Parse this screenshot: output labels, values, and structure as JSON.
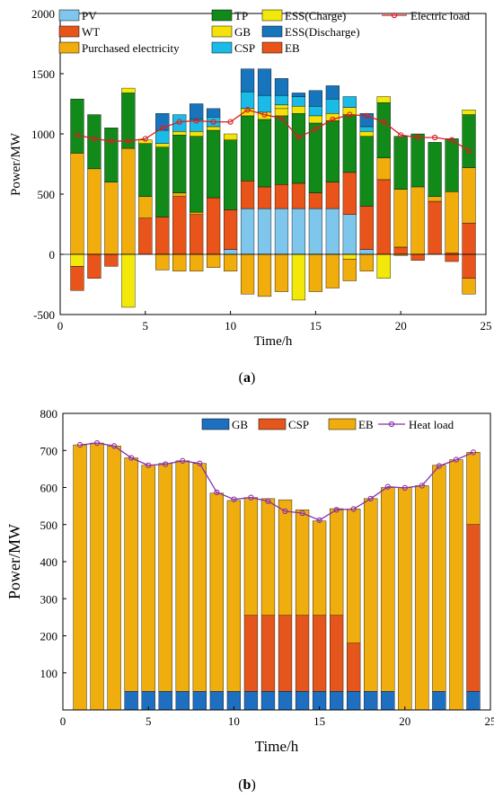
{
  "colors": {
    "PV": "#7ec6ec",
    "WT": "#e8541a",
    "PE": "#f0ad0b",
    "TP": "#118a1a",
    "GB": "#f5e20a",
    "CSP": "#1bbbe8",
    "ESSc": "#f2e80a",
    "ESSd": "#1775be",
    "EB": "#e8541a",
    "load": "#d81e1e",
    "GB_b": "#1e6fc0",
    "CSP_b": "#e4561b",
    "EB_b": "#f0ae0e",
    "heat": "#8a2fa8"
  },
  "chart_data": [
    {
      "type": "bar",
      "caption_letter": "a",
      "xlabel": "Time/h",
      "ylabel": "Power/MW",
      "xlim": [
        0,
        25
      ],
      "ylim": [
        -500,
        2000
      ],
      "xticks": [
        0,
        5,
        10,
        15,
        20,
        25
      ],
      "yticks": [
        -500,
        0,
        500,
        1000,
        1500,
        2000
      ],
      "grid": false,
      "legend_position": "top",
      "legend": [
        {
          "key": "PV",
          "label": "PV",
          "kind": "box"
        },
        {
          "key": "TP",
          "label": "TP",
          "kind": "box"
        },
        {
          "key": "ESSc",
          "label": "ESS(Charge)",
          "kind": "box"
        },
        {
          "key": "load",
          "label": "Electric load",
          "kind": "line"
        },
        {
          "key": "WT",
          "label": "WT",
          "kind": "box"
        },
        {
          "key": "GB",
          "label": "GB",
          "kind": "box"
        },
        {
          "key": "ESSd",
          "label": "ESS(Discharge)",
          "kind": "box"
        },
        {
          "key": "PE",
          "label": "Purchased electricity",
          "kind": "box"
        },
        {
          "key": "CSP",
          "label": "CSP",
          "kind": "box"
        },
        {
          "key": "EB",
          "label": "EB",
          "kind": "box"
        }
      ],
      "x": [
        1,
        2,
        3,
        4,
        5,
        6,
        7,
        8,
        9,
        10,
        11,
        12,
        13,
        14,
        15,
        16,
        17,
        18,
        19,
        20,
        21,
        22,
        23,
        24
      ],
      "positive_series": [
        {
          "key": "PV",
          "values": [
            0,
            0,
            0,
            0,
            0,
            0,
            0,
            0,
            0,
            40,
            380,
            380,
            380,
            380,
            380,
            380,
            330,
            40,
            0,
            0,
            0,
            0,
            0,
            0
          ]
        },
        {
          "key": "WT",
          "values": [
            0,
            0,
            0,
            0,
            300,
            310,
            480,
            330,
            470,
            330,
            230,
            180,
            200,
            210,
            130,
            220,
            350,
            360,
            620,
            60,
            0,
            440,
            10,
            260
          ]
        },
        {
          "key": "PE",
          "values": [
            840,
            710,
            600,
            880,
            180,
            0,
            30,
            20,
            0,
            0,
            0,
            0,
            0,
            0,
            0,
            0,
            0,
            0,
            180,
            480,
            560,
            40,
            510,
            460
          ]
        },
        {
          "key": "TP",
          "values": [
            450,
            450,
            450,
            460,
            440,
            580,
            480,
            630,
            560,
            580,
            540,
            560,
            570,
            580,
            580,
            510,
            480,
            580,
            460,
            440,
            440,
            450,
            440,
            440
          ]
        },
        {
          "key": "GB",
          "values": [
            0,
            0,
            0,
            0,
            30,
            30,
            30,
            40,
            30,
            50,
            60,
            60,
            60,
            60,
            60,
            60,
            60,
            40,
            0,
            0,
            0,
            0,
            0,
            0
          ]
        },
        {
          "key": "ESSc",
          "values": [
            0,
            0,
            0,
            40,
            0,
            0,
            0,
            0,
            0,
            0,
            0,
            0,
            30,
            0,
            0,
            0,
            0,
            0,
            50,
            0,
            0,
            0,
            0,
            40
          ]
        },
        {
          "key": "CSP",
          "values": [
            0,
            0,
            0,
            0,
            0,
            110,
            140,
            100,
            80,
            0,
            140,
            140,
            80,
            80,
            80,
            120,
            90,
            40,
            0,
            0,
            0,
            0,
            0,
            0
          ]
        },
        {
          "key": "ESSd",
          "values": [
            0,
            0,
            0,
            0,
            0,
            140,
            0,
            130,
            70,
            0,
            190,
            220,
            140,
            30,
            130,
            110,
            0,
            110,
            0,
            0,
            0,
            0,
            0,
            0
          ]
        }
      ],
      "negative_series": [
        {
          "key": "ESSc",
          "values": [
            -100,
            0,
            0,
            -440,
            0,
            0,
            0,
            0,
            0,
            0,
            0,
            0,
            0,
            -380,
            0,
            0,
            -40,
            0,
            -200,
            0,
            0,
            0,
            0,
            0
          ]
        },
        {
          "key": "EB",
          "values": [
            -200,
            -200,
            -100,
            0,
            0,
            0,
            0,
            0,
            0,
            0,
            0,
            0,
            0,
            0,
            0,
            0,
            0,
            0,
            0,
            0,
            -50,
            0,
            -60,
            -200
          ]
        },
        {
          "key": "PE",
          "values": [
            0,
            0,
            0,
            0,
            0,
            -130,
            -140,
            -140,
            -110,
            -140,
            -330,
            -350,
            -310,
            0,
            -310,
            -280,
            -180,
            -140,
            0,
            -10,
            0,
            0,
            0,
            -130
          ]
        }
      ],
      "line_series": {
        "key": "load",
        "name": "Electric load",
        "values": [
          990,
          960,
          940,
          940,
          960,
          1050,
          1100,
          1110,
          1100,
          1100,
          1200,
          1160,
          1130,
          970,
          1040,
          1120,
          1160,
          1150,
          1100,
          990,
          970,
          970,
          950,
          860
        ]
      }
    },
    {
      "type": "bar",
      "caption_letter": "b",
      "xlabel": "Time/h",
      "ylabel": "Power/MW",
      "xlim": [
        0,
        25
      ],
      "ylim": [
        0,
        800
      ],
      "xticks": [
        0,
        5,
        10,
        15,
        20,
        25
      ],
      "yticks": [
        100,
        200,
        300,
        400,
        500,
        600,
        700,
        800
      ],
      "grid": false,
      "legend_position": "top-right",
      "legend": [
        {
          "key": "GB_b",
          "label": "GB",
          "kind": "box"
        },
        {
          "key": "CSP_b",
          "label": "CSP",
          "kind": "box"
        },
        {
          "key": "EB_b",
          "label": "EB",
          "kind": "box"
        },
        {
          "key": "heat",
          "label": "Heat load",
          "kind": "line"
        }
      ],
      "x": [
        1,
        2,
        3,
        4,
        5,
        6,
        7,
        8,
        9,
        10,
        11,
        12,
        13,
        14,
        15,
        16,
        17,
        18,
        19,
        20,
        21,
        22,
        23,
        24
      ],
      "positive_series": [
        {
          "key": "GB_b",
          "values": [
            0,
            0,
            0,
            50,
            50,
            50,
            50,
            50,
            50,
            50,
            50,
            50,
            50,
            50,
            50,
            50,
            50,
            50,
            50,
            0,
            0,
            50,
            0,
            50
          ]
        },
        {
          "key": "CSP_b",
          "values": [
            0,
            0,
            0,
            0,
            0,
            0,
            0,
            0,
            0,
            0,
            205,
            205,
            205,
            205,
            205,
            205,
            130,
            0,
            0,
            0,
            0,
            0,
            0,
            450
          ]
        },
        {
          "key": "EB_b",
          "values": [
            715,
            720,
            712,
            630,
            610,
            615,
            622,
            615,
            535,
            515,
            318,
            315,
            312,
            285,
            255,
            288,
            362,
            520,
            550,
            600,
            605,
            610,
            675,
            195
          ]
        }
      ],
      "negative_series": [],
      "line_series": {
        "key": "heat",
        "name": "Heat load",
        "values": [
          715,
          720,
          712,
          680,
          660,
          663,
          672,
          665,
          587,
          568,
          573,
          563,
          536,
          531,
          512,
          540,
          542,
          570,
          602,
          599,
          605,
          658,
          675,
          695
        ]
      }
    }
  ]
}
